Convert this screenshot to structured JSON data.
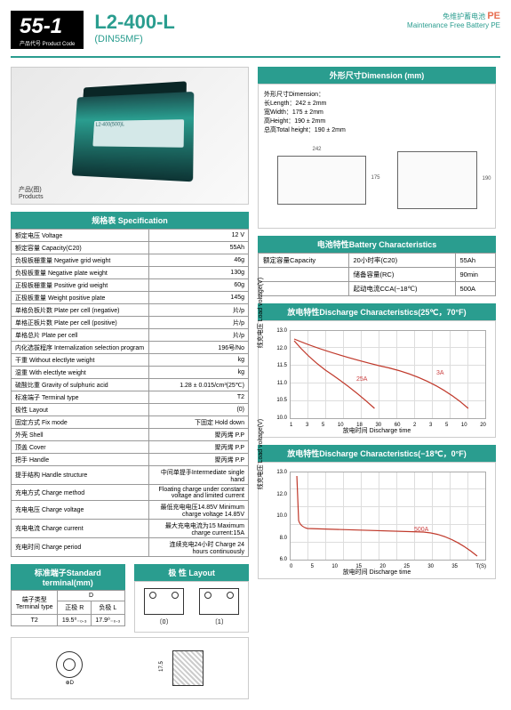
{
  "header": {
    "code": "55-1",
    "code_label": "产品代号 Product Code",
    "model": "L2-400-L",
    "din": "(DIN55MF)",
    "right_cn": "免维护蓄电池",
    "pe": "PE",
    "right_en": "Maintenance Free Battery  PE"
  },
  "product_caption": "产品(图)\nProducts",
  "battery_label": "L2-400(500)L",
  "dimension": {
    "header": "外形尺寸Dimension (mm)",
    "title": "外形尺寸Dimension：",
    "length": "长Length：242 ± 2mm",
    "width": "宽Width：175 ± 2mm",
    "height": "高Height：190 ± 2mm",
    "total": "总高Total height：190 ± 2mm",
    "dim_242": "242",
    "dim_175": "175",
    "dim_190": "190"
  },
  "spec": {
    "header": "规格表 Specification",
    "rows": [
      [
        "额定电压 Voltage",
        "12 V"
      ],
      [
        "额定容量 Capacity(C20)",
        "55Ah"
      ],
      [
        "负极板栅重量 Negative grid weight",
        "46g"
      ],
      [
        "负极板重量 Negative plate weight",
        "130g"
      ],
      [
        "正极板栅重量 Positive grid weight",
        "60g"
      ],
      [
        "正极板重量 Weight positive plate",
        "145g"
      ],
      [
        "单格负板片数 Plate per cell (negative)",
        "片/p"
      ],
      [
        "单格正板片数 Plate per cell (positive)",
        "片/p"
      ],
      [
        "单格总片 Plate per cell",
        "片/p"
      ],
      [
        "内化选拔程序 Internalization selection program",
        "196号/No"
      ],
      [
        "干重 Without electlyte weight",
        "kg"
      ],
      [
        "湿重 With electlyte weight",
        "kg"
      ],
      [
        "硫酸比重 Gravity of sulphuric acid",
        "1.28 ± 0.015/cm³(25℃)"
      ],
      [
        "标准端子 Terminal type",
        "T2"
      ],
      [
        "极性 Layout",
        "(0)"
      ],
      [
        "固定方式 Fix mode",
        "下固定 Hold down"
      ],
      [
        "外壳 Shell",
        "聚丙烯 P.P"
      ],
      [
        "顶盖 Cover",
        "聚丙烯 P.P"
      ],
      [
        "把手 Handle",
        "聚丙烯 P.P"
      ],
      [
        "提手结构 Handle structure",
        "中间单提手Intermediate single hand"
      ],
      [
        "充电方式 Charge method",
        "Floating charge under constant voltage and limited current"
      ],
      [
        "充电电压 Charge voltage",
        "最低充电电压14.85V Minimum charge voltage 14.85V"
      ],
      [
        "充电电流 Charge current",
        "最大充电电流为15 Maximum charge current:15A"
      ],
      [
        "充电时间 Charge period",
        "连续充电24小时 Charge 24 hours continuously"
      ]
    ]
  },
  "characteristics": {
    "header": "电池特性Battery Characteristics",
    "rows": [
      [
        "额定容量Capacity",
        "20小时率(C20)",
        "55Ah"
      ],
      [
        "",
        "储备容量(RC)",
        "90min"
      ],
      [
        "",
        "起动电流CCA(−18℃)",
        "500A"
      ]
    ]
  },
  "chart1": {
    "header": "放电特性Discharge Characteristics(25℃，70°F)",
    "y_label": "线充电压 Load voltage(V)",
    "x_label": "放电时间 Discharge time",
    "y_ticks": [
      "13.0",
      "12.0",
      "11.5",
      "11.0",
      "10.5",
      "10.0"
    ],
    "x_ticks_min": [
      "1",
      "3",
      "5",
      "10",
      "18",
      "30",
      "60"
    ],
    "x_ticks_hr": [
      "2",
      "3",
      "5",
      "10",
      "20"
    ],
    "x_unit1": "min",
    "x_unit2": "小时",
    "annot_25a": "25A",
    "annot_3a": "3A",
    "curve_color": "#c0392b"
  },
  "chart2": {
    "header": "放电特性Discharge Characteristics(−18℃，0°F)",
    "y_label": "线充电压 Load voltage(V)",
    "x_label": "放电时间 Discharge time",
    "y_ticks": [
      "13.0",
      "12.0",
      "10.0",
      "8.0",
      "6.0"
    ],
    "x_ticks": [
      "0",
      "5",
      "10",
      "15",
      "20",
      "25",
      "30",
      "35",
      "T(S)"
    ],
    "annot_500a": "500A",
    "curve_color": "#c0392b"
  },
  "terminal": {
    "header": "标准端子Standard terminal(mm)",
    "col_type": "端子类型\nTerminal type",
    "col_d": "D",
    "col_pos": "正极 R",
    "col_neg": "负极 L",
    "t2": "T2",
    "pos_val": "19.5⁰₋₀.₃",
    "neg_val": "17.9⁰₋₀.₃",
    "dim_d": "⊕D",
    "dim_17": "17.5"
  },
  "layout": {
    "header": "极 性 Layout",
    "l0": "〔0〕",
    "l1": "〔1〕"
  }
}
